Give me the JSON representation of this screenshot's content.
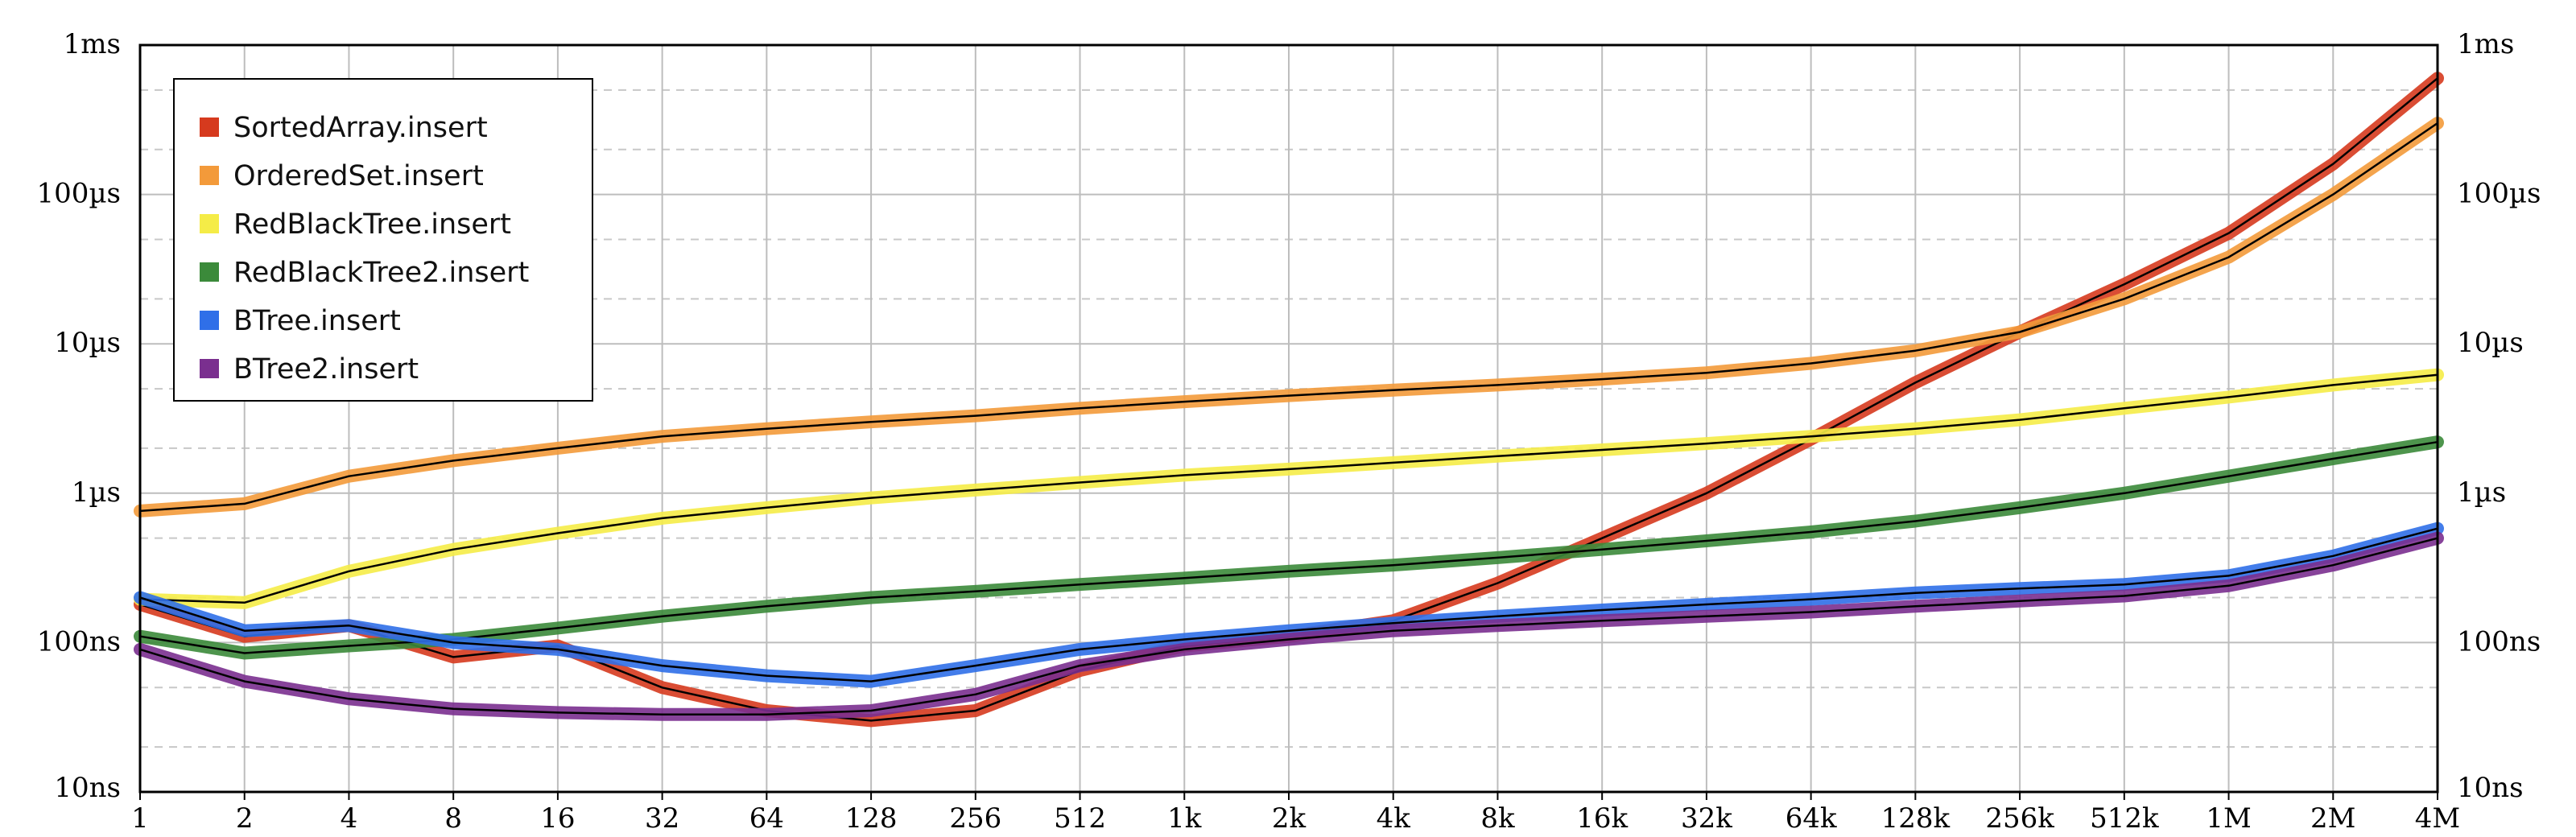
{
  "chart_data": {
    "type": "line",
    "title": "",
    "xlabel": "",
    "ylabel": "",
    "x_scale": "log2",
    "y_scale": "log10",
    "x_tick_labels": [
      "1",
      "2",
      "4",
      "8",
      "16",
      "32",
      "64",
      "128",
      "256",
      "512",
      "1k",
      "2k",
      "4k",
      "8k",
      "16k",
      "32k",
      "64k",
      "128k",
      "256k",
      "512k",
      "1M",
      "2M",
      "4M"
    ],
    "y_tick_labels": [
      "10ns",
      "100ns",
      "1µs",
      "10µs",
      "100µs",
      "1ms"
    ],
    "xlim": [
      1,
      4194304
    ],
    "ylim_ns": [
      10,
      1000000
    ],
    "grid": true,
    "legend_position": "top-left",
    "series": [
      {
        "name": "SortedArray.insert",
        "color": "#d63a1e",
        "x": [
          1,
          2,
          4,
          8,
          16,
          32,
          64,
          128,
          256,
          512,
          1024,
          2048,
          4096,
          8192,
          16384,
          32768,
          65536,
          131072,
          262144,
          524288,
          1048576,
          2097152,
          4194304
        ],
        "y": [
          180,
          110,
          130,
          80,
          95,
          50,
          35,
          30,
          35,
          65,
          95,
          110,
          140,
          250,
          500,
          1000,
          2300,
          5500,
          12000,
          25000,
          55000,
          160000,
          600000
        ]
      },
      {
        "name": "OrderedSet.insert",
        "color": "#f39a3a",
        "x": [
          1,
          2,
          4,
          8,
          16,
          32,
          64,
          128,
          256,
          512,
          1024,
          2048,
          4096,
          8192,
          16384,
          32768,
          65536,
          131072,
          262144,
          524288,
          1048576,
          2097152,
          4194304
        ],
        "y": [
          760,
          850,
          1300,
          1650,
          2000,
          2400,
          2700,
          3000,
          3300,
          3700,
          4100,
          4500,
          4900,
          5300,
          5800,
          6400,
          7400,
          9000,
          12000,
          20000,
          38000,
          100000,
          300000
        ]
      },
      {
        "name": "RedBlackTree.insert",
        "color": "#f5ec47",
        "x": [
          1,
          2,
          4,
          8,
          16,
          32,
          64,
          128,
          256,
          512,
          1024,
          2048,
          4096,
          8192,
          16384,
          32768,
          65536,
          131072,
          262144,
          524288,
          1048576,
          2097152,
          4194304
        ],
        "y": [
          195,
          185,
          300,
          420,
          540,
          680,
          800,
          930,
          1050,
          1180,
          1320,
          1450,
          1600,
          1770,
          1950,
          2150,
          2400,
          2700,
          3100,
          3700,
          4400,
          5300,
          6200
        ]
      },
      {
        "name": "RedBlackTree2.insert",
        "color": "#3b8a3a",
        "x": [
          1,
          2,
          4,
          8,
          16,
          32,
          64,
          128,
          256,
          512,
          1024,
          2048,
          4096,
          8192,
          16384,
          32768,
          65536,
          131072,
          262144,
          524288,
          1048576,
          2097152,
          4194304
        ],
        "y": [
          110,
          85,
          95,
          105,
          125,
          150,
          175,
          200,
          220,
          245,
          270,
          300,
          330,
          370,
          420,
          480,
          550,
          650,
          800,
          1000,
          1300,
          1700,
          2200
        ]
      },
      {
        "name": "BTree.insert",
        "color": "#2f6fe8",
        "x": [
          1,
          2,
          4,
          8,
          16,
          32,
          64,
          128,
          256,
          512,
          1024,
          2048,
          4096,
          8192,
          16384,
          32768,
          65536,
          131072,
          262144,
          524288,
          1048576,
          2097152,
          4194304
        ],
        "y": [
          200,
          120,
          130,
          100,
          90,
          70,
          60,
          55,
          70,
          90,
          105,
          120,
          135,
          150,
          165,
          180,
          195,
          215,
          230,
          245,
          280,
          380,
          580
        ]
      },
      {
        "name": "BTree2.insert",
        "color": "#7a2f8f",
        "x": [
          1,
          2,
          4,
          8,
          16,
          32,
          64,
          128,
          256,
          512,
          1024,
          2048,
          4096,
          8192,
          16384,
          32768,
          65536,
          131072,
          262144,
          524288,
          1048576,
          2097152,
          4194304
        ],
        "y": [
          90,
          55,
          42,
          36,
          34,
          33,
          33,
          35,
          45,
          70,
          90,
          105,
          120,
          130,
          140,
          150,
          160,
          175,
          190,
          205,
          240,
          330,
          500
        ]
      }
    ]
  }
}
